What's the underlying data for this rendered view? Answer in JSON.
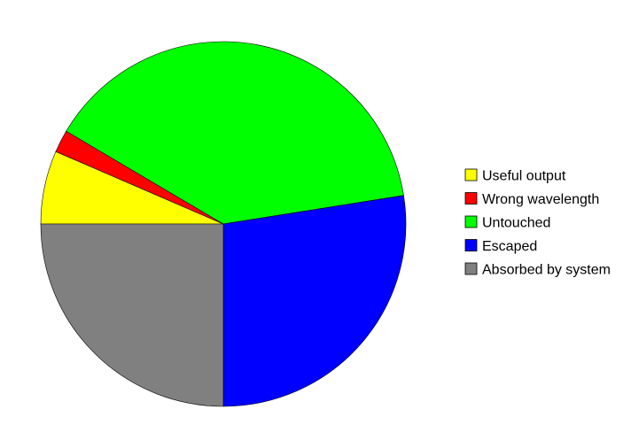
{
  "chart_data": {
    "type": "pie",
    "title": "",
    "legend_position": "right",
    "start_angle_deg": 180,
    "direction": "clockwise",
    "slices": [
      {
        "label": "Useful output",
        "value": 6.5,
        "color": "#ffff00"
      },
      {
        "label": "Wrong wavelength",
        "value": 2.0,
        "color": "#ff0000"
      },
      {
        "label": "Untouched",
        "value": 39.0,
        "color": "#00ff00"
      },
      {
        "label": "Escaped",
        "value": 27.5,
        "color": "#0000ff"
      },
      {
        "label": "Absorbed by system",
        "value": 25.0,
        "color": "#808080"
      }
    ]
  }
}
